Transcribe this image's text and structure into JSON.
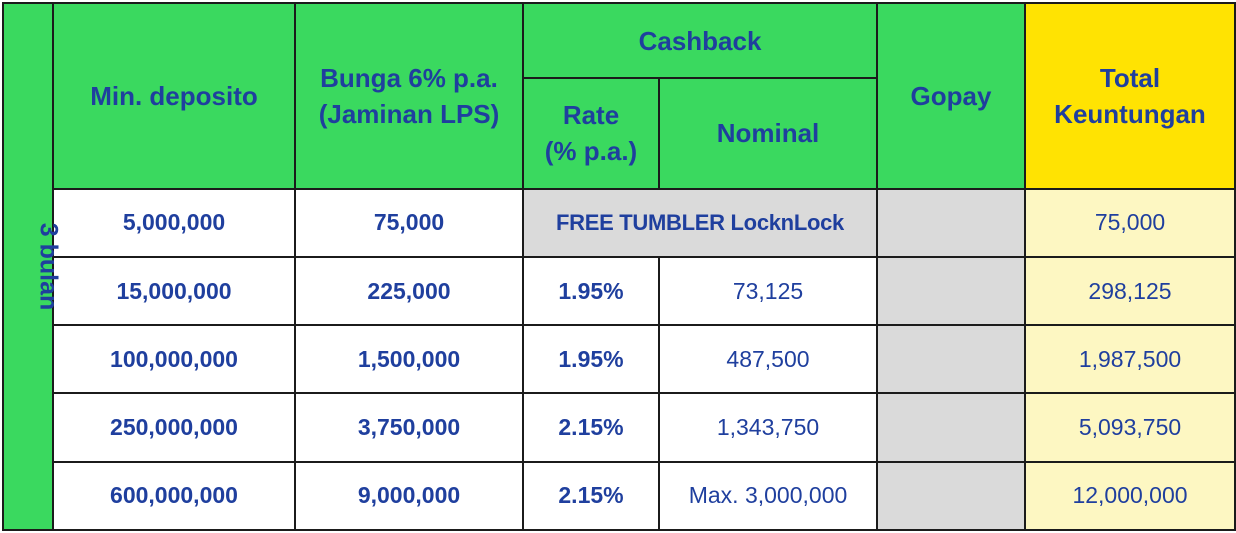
{
  "table": {
    "side_label": "3 bulan",
    "headers": {
      "min_deposit": "Min. deposito",
      "interest_line1": "Bunga 6% p.a.",
      "interest_line2": "(Jaminan LPS)",
      "cashback": "Cashback",
      "rate_line1": "Rate",
      "rate_line2": "(% p.a.)",
      "nominal": "Nominal",
      "gopay": "Gopay",
      "total_line1": "Total",
      "total_line2": "Keuntungan"
    },
    "promo_text": "FREE TUMBLER LocknLock",
    "rows": [
      {
        "min_deposit": "5,000,000",
        "interest": "75,000",
        "rate": "",
        "nominal": "",
        "gopay": "",
        "total": "75,000"
      },
      {
        "min_deposit": "15,000,000",
        "interest": "225,000",
        "rate": "1.95%",
        "nominal": "73,125",
        "gopay": "",
        "total": "298,125"
      },
      {
        "min_deposit": "100,000,000",
        "interest": "1,500,000",
        "rate": "1.95%",
        "nominal": "487,500",
        "gopay": "",
        "total": "1,987,500"
      },
      {
        "min_deposit": "250,000,000",
        "interest": "3,750,000",
        "rate": "2.15%",
        "nominal": "1,343,750",
        "gopay": "",
        "total": "5,093,750"
      },
      {
        "min_deposit": "600,000,000",
        "interest": "9,000,000",
        "rate": "2.15%",
        "nominal": "Max. 3,000,000",
        "gopay": "",
        "total": "12,000,000"
      }
    ],
    "colors": {
      "header_green": "#3ad95f",
      "total_yellow": "#ffe302",
      "total_cell_yellow": "#fdf7c2",
      "grey_cell": "#dadada",
      "text_blue": "#1f3f9e"
    }
  }
}
